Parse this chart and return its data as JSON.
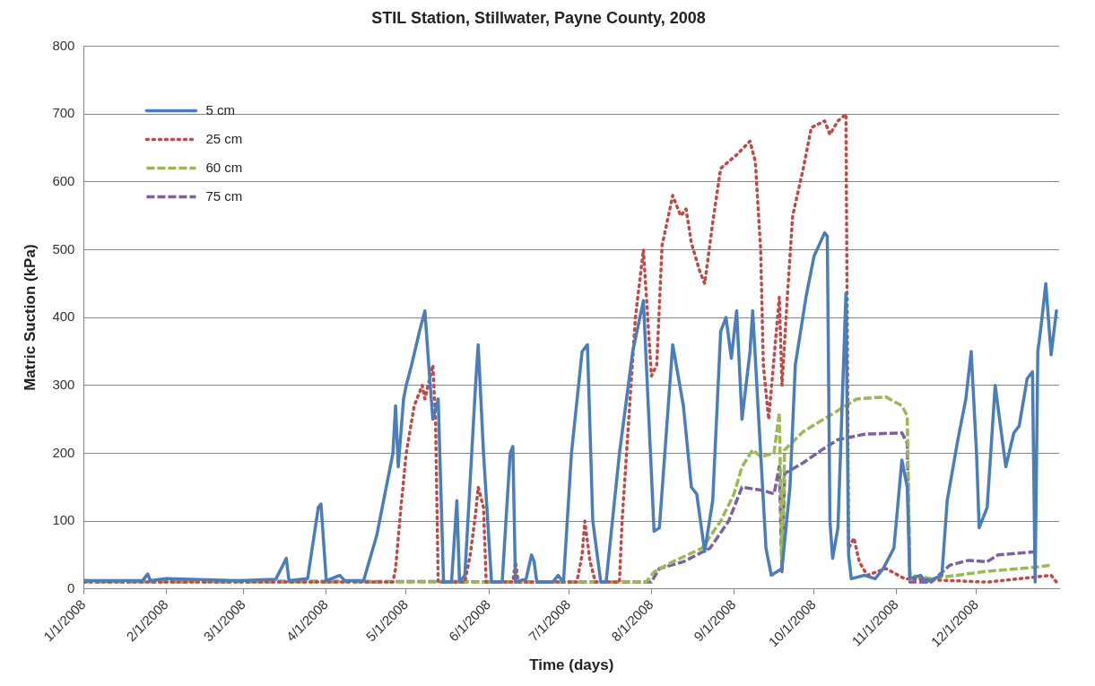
{
  "chart_data": {
    "type": "line",
    "title": "STIL Station, Stillwater, Payne County, 2008",
    "xlabel": "Time (days)",
    "ylabel": "Matric Suction (kPa)",
    "xlim": [
      "2008-01-01",
      "2009-01-01"
    ],
    "xticks": [
      {
        "value": "2008-01-01",
        "label": "1/1/2008"
      },
      {
        "value": "2008-02-01",
        "label": "2/1/2008"
      },
      {
        "value": "2008-03-01",
        "label": "3/1/2008"
      },
      {
        "value": "2008-04-01",
        "label": "4/1/2008"
      },
      {
        "value": "2008-05-01",
        "label": "5/1/2008"
      },
      {
        "value": "2008-06-01",
        "label": "6/1/2008"
      },
      {
        "value": "2008-07-01",
        "label": "7/1/2008"
      },
      {
        "value": "2008-08-01",
        "label": "8/1/2008"
      },
      {
        "value": "2008-09-01",
        "label": "9/1/2008"
      },
      {
        "value": "2008-10-01",
        "label": "10/1/2008"
      },
      {
        "value": "2008-11-01",
        "label": "11/1/2008"
      },
      {
        "value": "2008-12-01",
        "label": "12/1/2008"
      }
    ],
    "ylim": [
      0,
      800
    ],
    "yticks": [
      0,
      100,
      200,
      300,
      400,
      500,
      600,
      700,
      800
    ],
    "grid": "y",
    "legend": "top left",
    "marker": "none",
    "series": [
      {
        "name": "5 cm",
        "color": "#4a7ebb",
        "line_style": "solid",
        "x": [
          "2008-01-01",
          "2008-01-23",
          "2008-01-25",
          "2008-01-26",
          "2008-02-01",
          "2008-02-28",
          "2008-03-13",
          "2008-03-17",
          "2008-03-18",
          "2008-03-25",
          "2008-03-29",
          "2008-03-30",
          "2008-04-01",
          "2008-04-06",
          "2008-04-08",
          "2008-04-15",
          "2008-04-20",
          "2008-04-26",
          "2008-04-27",
          "2008-04-28",
          "2008-04-30",
          "2008-05-01",
          "2008-05-03",
          "2008-05-06",
          "2008-05-08",
          "2008-05-10",
          "2008-05-11",
          "2008-05-13",
          "2008-05-15",
          "2008-05-18",
          "2008-05-20",
          "2008-05-21",
          "2008-05-23",
          "2008-05-27",
          "2008-05-28",
          "2008-05-30",
          "2008-06-02",
          "2008-06-06",
          "2008-06-09",
          "2008-06-10",
          "2008-06-11",
          "2008-06-15",
          "2008-06-17",
          "2008-06-18",
          "2008-06-19",
          "2008-06-25",
          "2008-06-27",
          "2008-06-29",
          "2008-07-02",
          "2008-07-06",
          "2008-07-08",
          "2008-07-10",
          "2008-07-13",
          "2008-07-15",
          "2008-07-20",
          "2008-07-25",
          "2008-07-29",
          "2008-08-02",
          "2008-08-04",
          "2008-08-09",
          "2008-08-13",
          "2008-08-16",
          "2008-08-18",
          "2008-08-21",
          "2008-08-24",
          "2008-08-27",
          "2008-08-29",
          "2008-08-31",
          "2008-09-02",
          "2008-09-04",
          "2008-09-07",
          "2008-09-08",
          "2008-09-11",
          "2008-09-13",
          "2008-09-15",
          "2008-09-19",
          "2008-09-22",
          "2008-09-24",
          "2008-09-28",
          "2008-10-01",
          "2008-10-05",
          "2008-10-06",
          "2008-10-07",
          "2008-10-08",
          "2008-10-10",
          "2008-10-13",
          "2008-10-14",
          "2008-10-15",
          "2008-10-20",
          "2008-10-24",
          "2008-10-27",
          "2008-10-31",
          "2008-11-03",
          "2008-11-05",
          "2008-11-06",
          "2008-11-10",
          "2008-11-12",
          "2008-11-18",
          "2008-11-20",
          "2008-11-24",
          "2008-11-27",
          "2008-11-29",
          "2008-12-01",
          "2008-12-02",
          "2008-12-05",
          "2008-12-08",
          "2008-12-12",
          "2008-12-15",
          "2008-12-17",
          "2008-12-20",
          "2008-12-22",
          "2008-12-23",
          "2008-12-24",
          "2008-12-25",
          "2008-12-27",
          "2008-12-29",
          "2008-12-31"
        ],
        "values": [
          12,
          12,
          22,
          12,
          15,
          12,
          14,
          45,
          12,
          15,
          120,
          125,
          12,
          20,
          12,
          12,
          80,
          200,
          270,
          180,
          280,
          300,
          330,
          380,
          410,
          300,
          250,
          280,
          10,
          10,
          130,
          10,
          20,
          300,
          360,
          200,
          10,
          10,
          200,
          210,
          10,
          15,
          50,
          40,
          10,
          10,
          20,
          10,
          200,
          350,
          360,
          100,
          10,
          10,
          200,
          350,
          425,
          85,
          90,
          360,
          270,
          150,
          140,
          55,
          130,
          380,
          400,
          340,
          410,
          250,
          350,
          410,
          200,
          60,
          20,
          30,
          150,
          330,
          430,
          490,
          525,
          520,
          100,
          45,
          90,
          436,
          50,
          15,
          20,
          15,
          30,
          60,
          190,
          150,
          15,
          20,
          10,
          20,
          130,
          220,
          280,
          350,
          200,
          90,
          120,
          300,
          180,
          230,
          240,
          310,
          320,
          10,
          350,
          380,
          450,
          345,
          410
        ]
      },
      {
        "name": "25 cm",
        "color": "#be4b48",
        "line_style": "dotted",
        "x": [
          "2008-01-01",
          "2008-04-26",
          "2008-04-27",
          "2008-04-29",
          "2008-05-01",
          "2008-05-04",
          "2008-05-07",
          "2008-05-08",
          "2008-05-11",
          "2008-05-12",
          "2008-05-13",
          "2008-05-23",
          "2008-05-25",
          "2008-05-27",
          "2008-05-28",
          "2008-05-30",
          "2008-05-31",
          "2008-06-10",
          "2008-06-11",
          "2008-06-12",
          "2008-07-04",
          "2008-07-06",
          "2008-07-07",
          "2008-07-09",
          "2008-07-11",
          "2008-07-20",
          "2008-07-21",
          "2008-07-26",
          "2008-07-29",
          "2008-08-01",
          "2008-08-03",
          "2008-08-05",
          "2008-08-09",
          "2008-08-12",
          "2008-08-14",
          "2008-08-16",
          "2008-08-19",
          "2008-08-21",
          "2008-08-24",
          "2008-08-27",
          "2008-09-02",
          "2008-09-07",
          "2008-09-09",
          "2008-09-11",
          "2008-09-12",
          "2008-09-14",
          "2008-09-18",
          "2008-09-19",
          "2008-09-21",
          "2008-09-23",
          "2008-09-27",
          "2008-09-30",
          "2008-10-05",
          "2008-10-07",
          "2008-10-10",
          "2008-10-13",
          "2008-10-14",
          "2008-10-16",
          "2008-10-18",
          "2008-10-21",
          "2008-10-28",
          "2008-11-04",
          "2008-12-05",
          "2008-12-29",
          "2008-12-31"
        ],
        "values": [
          10,
          10,
          30,
          120,
          200,
          270,
          300,
          280,
          330,
          250,
          10,
          10,
          50,
          110,
          150,
          120,
          10,
          10,
          40,
          10,
          10,
          50,
          100,
          40,
          10,
          10,
          100,
          400,
          500,
          314,
          330,
          506,
          580,
          550,
          560,
          510,
          470,
          450,
          540,
          620,
          640,
          660,
          630,
          500,
          330,
          250,
          430,
          300,
          430,
          550,
          620,
          680,
          690,
          670,
          690,
          700,
          60,
          75,
          40,
          20,
          30,
          15,
          10,
          20,
          10
        ]
      },
      {
        "name": "60 cm",
        "color": "#98b954",
        "line_style": "dashed",
        "x": [
          "2008-01-01",
          "2008-07-30",
          "2008-08-02",
          "2008-08-09",
          "2008-08-20",
          "2008-08-27",
          "2008-09-01",
          "2008-09-04",
          "2008-09-08",
          "2008-09-11",
          "2008-09-16",
          "2008-09-18",
          "2008-09-19",
          "2008-09-20",
          "2008-09-27",
          "2008-10-08",
          "2008-10-17",
          "2008-10-28",
          "2008-11-03",
          "2008-11-05",
          "2008-11-06",
          "2008-11-14",
          "2008-12-05",
          "2008-12-23",
          "2008-12-29"
        ],
        "values": [
          10,
          10,
          25,
          40,
          60,
          100,
          140,
          180,
          205,
          195,
          200,
          260,
          40,
          205,
          232,
          258,
          280,
          283,
          270,
          255,
          20,
          15,
          26,
          32,
          35
        ]
      },
      {
        "name": "75 cm",
        "color": "#7d60a0",
        "line_style": "dashed",
        "x": [
          "2008-01-01",
          "2008-08-01",
          "2008-08-04",
          "2008-08-13",
          "2008-08-23",
          "2008-08-30",
          "2008-09-04",
          "2008-09-12",
          "2008-09-16",
          "2008-09-18",
          "2008-09-19",
          "2008-09-20",
          "2008-09-27",
          "2008-10-04",
          "2008-10-10",
          "2008-10-20",
          "2008-11-03",
          "2008-11-05",
          "2008-11-06",
          "2008-11-14",
          "2008-11-21",
          "2008-11-28",
          "2008-12-05",
          "2008-12-09",
          "2008-12-24"
        ],
        "values": [
          12,
          10,
          30,
          40,
          60,
          100,
          150,
          145,
          140,
          180,
          25,
          170,
          186,
          205,
          220,
          228,
          230,
          215,
          10,
          10,
          35,
          42,
          40,
          50,
          55
        ]
      }
    ]
  }
}
